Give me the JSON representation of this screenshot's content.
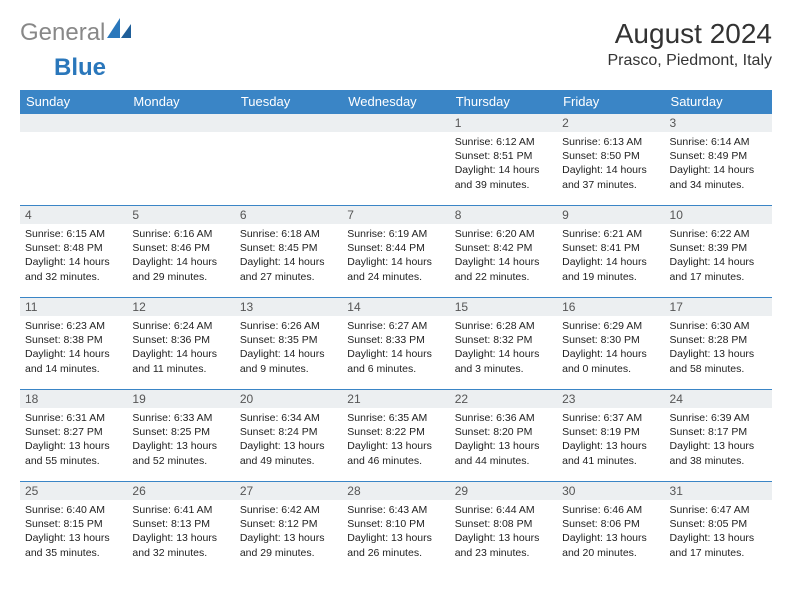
{
  "logo": {
    "text1": "General",
    "text2": "Blue"
  },
  "title": "August 2024",
  "location": "Prasco, Piedmont, Italy",
  "header_color": "#3a85c6",
  "daynum_bg": "#eceff1",
  "border_color": "#3a85c6",
  "columns": [
    "Sunday",
    "Monday",
    "Tuesday",
    "Wednesday",
    "Thursday",
    "Friday",
    "Saturday"
  ],
  "weeks": [
    [
      null,
      null,
      null,
      null,
      {
        "n": "1",
        "sr": "6:12 AM",
        "ss": "8:51 PM",
        "dl": "14 hours and 39 minutes."
      },
      {
        "n": "2",
        "sr": "6:13 AM",
        "ss": "8:50 PM",
        "dl": "14 hours and 37 minutes."
      },
      {
        "n": "3",
        "sr": "6:14 AM",
        "ss": "8:49 PM",
        "dl": "14 hours and 34 minutes."
      }
    ],
    [
      {
        "n": "4",
        "sr": "6:15 AM",
        "ss": "8:48 PM",
        "dl": "14 hours and 32 minutes."
      },
      {
        "n": "5",
        "sr": "6:16 AM",
        "ss": "8:46 PM",
        "dl": "14 hours and 29 minutes."
      },
      {
        "n": "6",
        "sr": "6:18 AM",
        "ss": "8:45 PM",
        "dl": "14 hours and 27 minutes."
      },
      {
        "n": "7",
        "sr": "6:19 AM",
        "ss": "8:44 PM",
        "dl": "14 hours and 24 minutes."
      },
      {
        "n": "8",
        "sr": "6:20 AM",
        "ss": "8:42 PM",
        "dl": "14 hours and 22 minutes."
      },
      {
        "n": "9",
        "sr": "6:21 AM",
        "ss": "8:41 PM",
        "dl": "14 hours and 19 minutes."
      },
      {
        "n": "10",
        "sr": "6:22 AM",
        "ss": "8:39 PM",
        "dl": "14 hours and 17 minutes."
      }
    ],
    [
      {
        "n": "11",
        "sr": "6:23 AM",
        "ss": "8:38 PM",
        "dl": "14 hours and 14 minutes."
      },
      {
        "n": "12",
        "sr": "6:24 AM",
        "ss": "8:36 PM",
        "dl": "14 hours and 11 minutes."
      },
      {
        "n": "13",
        "sr": "6:26 AM",
        "ss": "8:35 PM",
        "dl": "14 hours and 9 minutes."
      },
      {
        "n": "14",
        "sr": "6:27 AM",
        "ss": "8:33 PM",
        "dl": "14 hours and 6 minutes."
      },
      {
        "n": "15",
        "sr": "6:28 AM",
        "ss": "8:32 PM",
        "dl": "14 hours and 3 minutes."
      },
      {
        "n": "16",
        "sr": "6:29 AM",
        "ss": "8:30 PM",
        "dl": "14 hours and 0 minutes."
      },
      {
        "n": "17",
        "sr": "6:30 AM",
        "ss": "8:28 PM",
        "dl": "13 hours and 58 minutes."
      }
    ],
    [
      {
        "n": "18",
        "sr": "6:31 AM",
        "ss": "8:27 PM",
        "dl": "13 hours and 55 minutes."
      },
      {
        "n": "19",
        "sr": "6:33 AM",
        "ss": "8:25 PM",
        "dl": "13 hours and 52 minutes."
      },
      {
        "n": "20",
        "sr": "6:34 AM",
        "ss": "8:24 PM",
        "dl": "13 hours and 49 minutes."
      },
      {
        "n": "21",
        "sr": "6:35 AM",
        "ss": "8:22 PM",
        "dl": "13 hours and 46 minutes."
      },
      {
        "n": "22",
        "sr": "6:36 AM",
        "ss": "8:20 PM",
        "dl": "13 hours and 44 minutes."
      },
      {
        "n": "23",
        "sr": "6:37 AM",
        "ss": "8:19 PM",
        "dl": "13 hours and 41 minutes."
      },
      {
        "n": "24",
        "sr": "6:39 AM",
        "ss": "8:17 PM",
        "dl": "13 hours and 38 minutes."
      }
    ],
    [
      {
        "n": "25",
        "sr": "6:40 AM",
        "ss": "8:15 PM",
        "dl": "13 hours and 35 minutes."
      },
      {
        "n": "26",
        "sr": "6:41 AM",
        "ss": "8:13 PM",
        "dl": "13 hours and 32 minutes."
      },
      {
        "n": "27",
        "sr": "6:42 AM",
        "ss": "8:12 PM",
        "dl": "13 hours and 29 minutes."
      },
      {
        "n": "28",
        "sr": "6:43 AM",
        "ss": "8:10 PM",
        "dl": "13 hours and 26 minutes."
      },
      {
        "n": "29",
        "sr": "6:44 AM",
        "ss": "8:08 PM",
        "dl": "13 hours and 23 minutes."
      },
      {
        "n": "30",
        "sr": "6:46 AM",
        "ss": "8:06 PM",
        "dl": "13 hours and 20 minutes."
      },
      {
        "n": "31",
        "sr": "6:47 AM",
        "ss": "8:05 PM",
        "dl": "13 hours and 17 minutes."
      }
    ]
  ],
  "labels": {
    "sunrise": "Sunrise: ",
    "sunset": "Sunset: ",
    "daylight": "Daylight: "
  }
}
